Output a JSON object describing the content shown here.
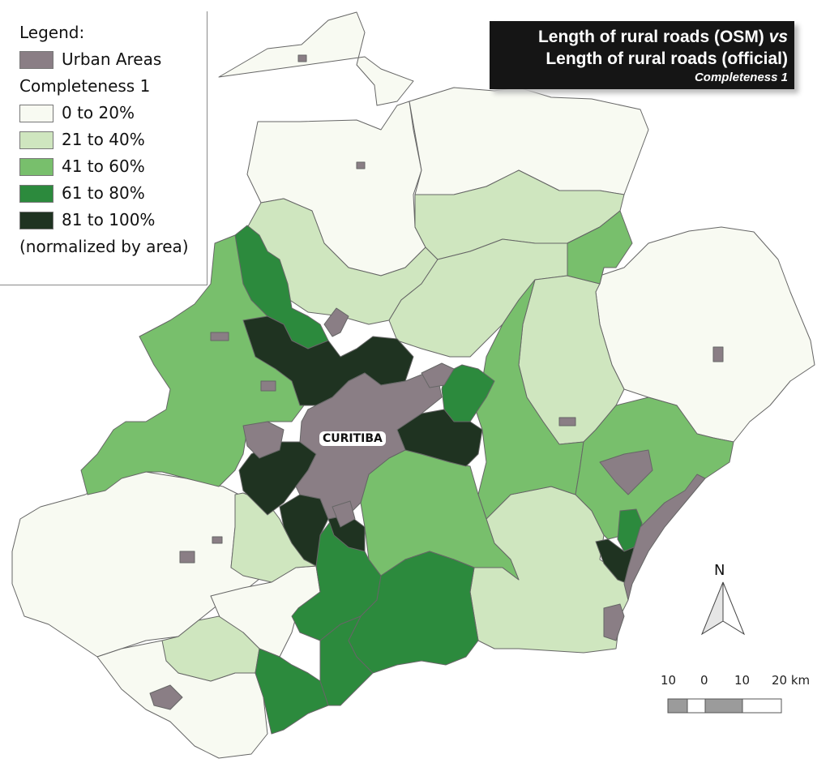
{
  "legend": {
    "heading": "Legend:",
    "urban_label": "Urban Areas",
    "completeness_heading": "Completeness 1",
    "classes": [
      {
        "label": "0 to 20%",
        "color": "#f8faf2"
      },
      {
        "label": "21 to 40%",
        "color": "#cfe6bf"
      },
      {
        "label": "41 to 60%",
        "color": "#78bf6c"
      },
      {
        "label": "61 to 80%",
        "color": "#2c8a3d"
      },
      {
        "label": "81 to 100%",
        "color": "#1f3321"
      }
    ],
    "note": "(normalized by area)",
    "urban_color": "#8a7e85"
  },
  "title": {
    "line1_a": "Length of rural roads (OSM) ",
    "line1_vs": "vs",
    "line2": "Length of rural roads (official)",
    "line3": "Completeness 1"
  },
  "map": {
    "city_label": "CURITIBA",
    "north_label": "N",
    "scale_labels": [
      "10",
      "0",
      "10",
      "20 km"
    ],
    "border_color": "#666666"
  }
}
